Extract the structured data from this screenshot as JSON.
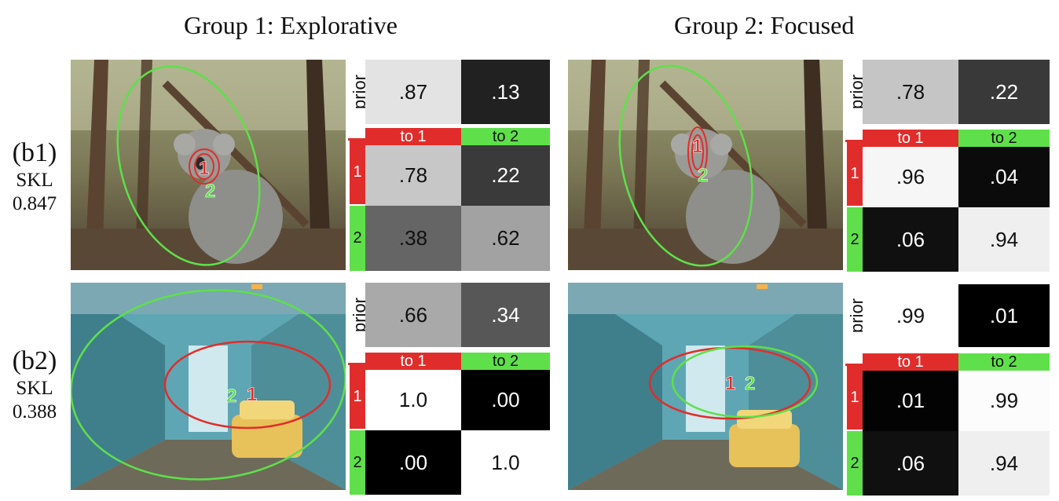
{
  "titles": {
    "group1": "Group 1: Explorative",
    "group2": "Group 2: Focused"
  },
  "rows": [
    {
      "tag": "(b1)",
      "metric_name": "SKL",
      "metric_value": "0.847"
    },
    {
      "tag": "(b2)",
      "metric_name": "SKL",
      "metric_value": "0.388"
    }
  ],
  "matrix_labels": {
    "prior": "prior",
    "to1": "to 1",
    "to2": "to 2",
    "row1": "1",
    "row2": "2"
  },
  "markers": {
    "one": "1",
    "two": "2"
  },
  "colors": {
    "red": "#e02d2b",
    "green": "#5fe04a"
  },
  "panels": {
    "b1_g1": {
      "prior": [
        ".87",
        ".13"
      ],
      "row1": [
        ".78",
        ".22"
      ],
      "row2": [
        ".38",
        ".62"
      ]
    },
    "b1_g2": {
      "prior": [
        ".78",
        ".22"
      ],
      "row1": [
        ".96",
        ".04"
      ],
      "row2": [
        ".06",
        ".94"
      ]
    },
    "b2_g1": {
      "prior": [
        ".66",
        ".34"
      ],
      "row1": [
        "1.0",
        ".00"
      ],
      "row2": [
        ".00",
        "1.0"
      ]
    },
    "b2_g2": {
      "prior": [
        ".99",
        ".01"
      ],
      "row1": [
        ".01",
        ".99"
      ],
      "row2": [
        ".06",
        ".94"
      ]
    }
  }
}
